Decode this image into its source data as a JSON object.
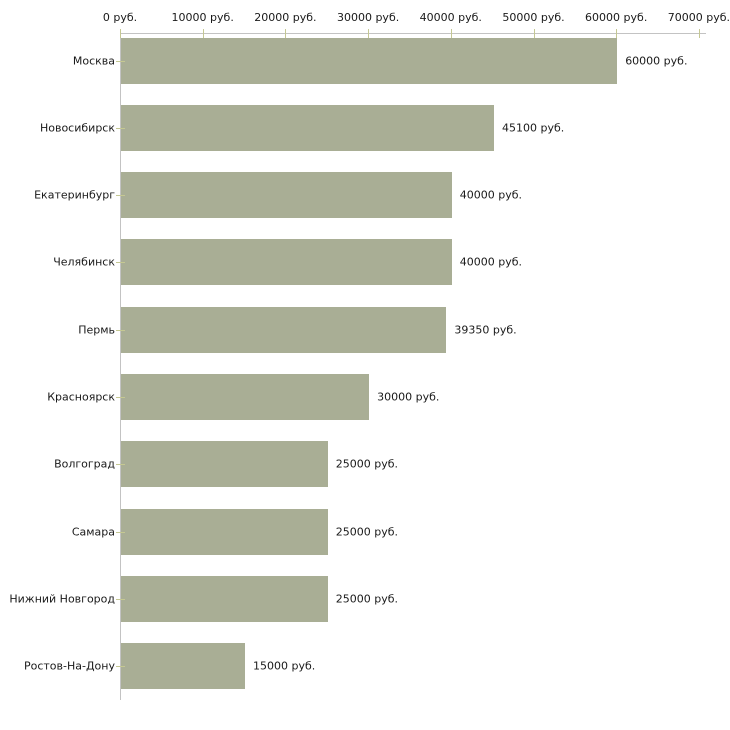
{
  "chart_data": {
    "type": "bar",
    "orientation": "horizontal",
    "title": "",
    "xlabel": "",
    "ylabel": "",
    "unit": "руб.",
    "categories": [
      "Москва",
      "Новосибирск",
      "Екатеринбург",
      "Челябинск",
      "Пермь",
      "Красноярск",
      "Волгоград",
      "Самара",
      "Нижний Новгород",
      "Ростов-На-Дону"
    ],
    "values": [
      60000,
      45100,
      40000,
      40000,
      39350,
      30000,
      25000,
      25000,
      25000,
      15000
    ],
    "value_labels": [
      "60000 руб.",
      "45100 руб.",
      "40000 руб.",
      "40000 руб.",
      "39350 руб.",
      "30000 руб.",
      "25000 руб.",
      "25000 руб.",
      "25000 руб.",
      "15000 руб."
    ],
    "x_tick_values": [
      0,
      10000,
      20000,
      30000,
      40000,
      50000,
      60000,
      70000
    ],
    "x_tick_labels": [
      "0 руб.",
      "10000 руб.",
      "20000 руб.",
      "30000 руб.",
      "40000 руб.",
      "50000 руб.",
      "60000 руб.",
      "70000 руб."
    ],
    "xlim": [
      0,
      70000
    ],
    "axis_position": "top",
    "grid": false,
    "legend": false,
    "colors": {
      "bar_fill": "#a9ae95",
      "axis_line": "#c3c3c3",
      "tick_mark": "#c5c893",
      "text": "#1a1a1a",
      "background": "#ffffff"
    }
  }
}
